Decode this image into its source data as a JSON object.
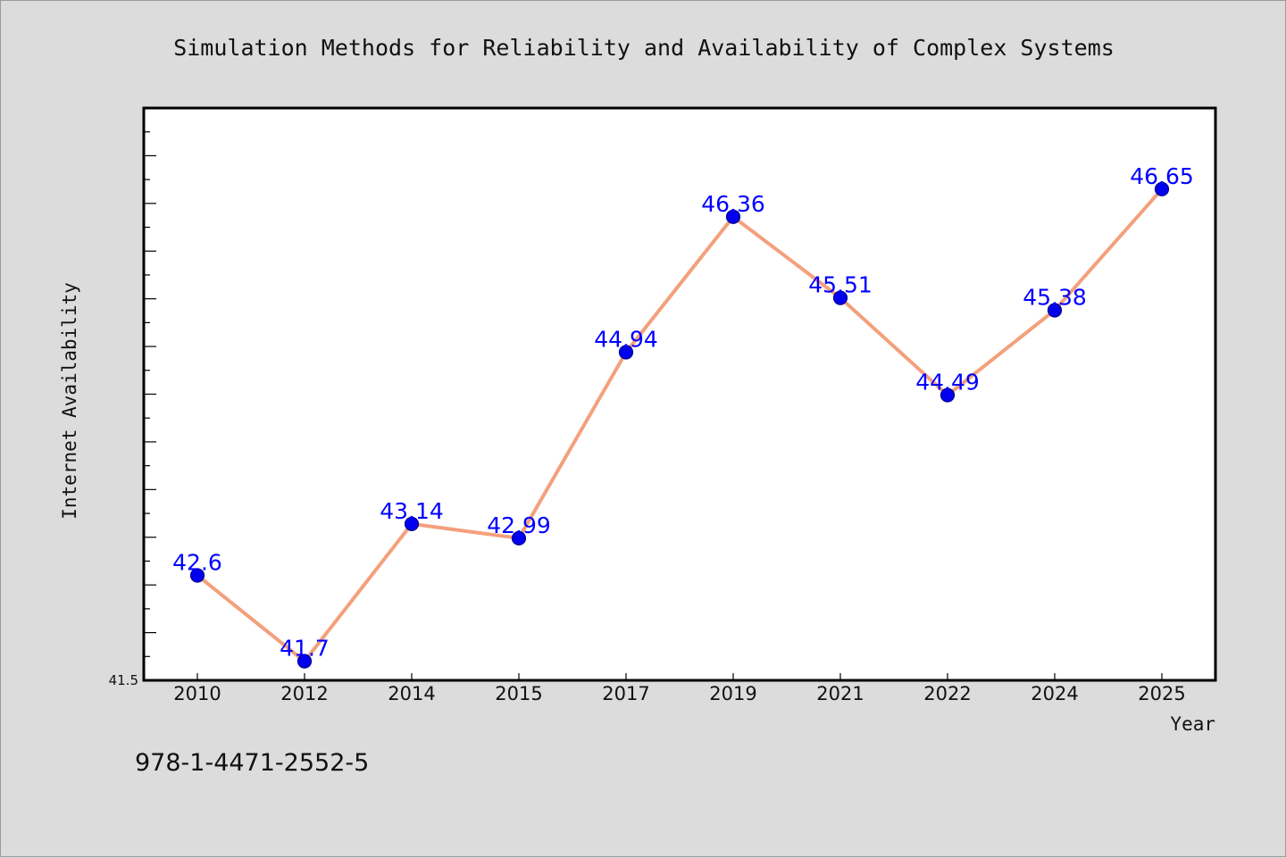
{
  "chart_data": {
    "type": "line",
    "title": "Simulation Methods for Reliability and Availability of Complex Systems",
    "xlabel": "Year",
    "ylabel": "Internet Availability",
    "categories": [
      "2010",
      "2012",
      "2014",
      "2015",
      "2017",
      "2019",
      "2021",
      "2022",
      "2024",
      "2025"
    ],
    "series": [
      {
        "values": [
          42.6,
          41.7,
          43.14,
          42.99,
          44.94,
          46.36,
          45.51,
          44.49,
          45.38,
          46.65
        ],
        "labels": [
          "42.6",
          "41.7",
          "43.14",
          "42.99",
          "44.94",
          "46.36",
          "45.51",
          "44.49",
          "45.38",
          "46.65"
        ]
      }
    ],
    "ylim": [
      41.5,
      47.5
    ],
    "yticks_labeled": [
      "41.5"
    ],
    "grid": false,
    "legend": "none",
    "colors": {
      "line": "#f4a07c",
      "marker": "#0000ee",
      "marker_edge": "#00008b",
      "data_label": "#0000ff",
      "plot_background": "#ffffff",
      "figure_background": "#dcdcdc"
    }
  },
  "footer": {
    "isbn": "978-1-4471-2552-5"
  }
}
